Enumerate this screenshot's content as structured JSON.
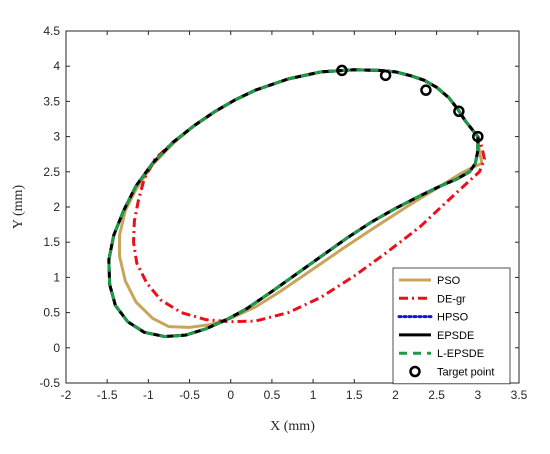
{
  "chart_data": {
    "type": "line",
    "xlabel": "X (mm)",
    "ylabel": "Y (mm)",
    "xlim": [
      -2,
      3.5
    ],
    "ylim": [
      -0.5,
      4.5
    ],
    "xticks": [
      "-2",
      "-1.5",
      "-1",
      "-0.5",
      "0",
      "0.5",
      "1",
      "1.5",
      "2",
      "2.5",
      "3",
      "3.5"
    ],
    "yticks": [
      "-0.5",
      "0",
      "0.5",
      "1",
      "1.5",
      "2",
      "2.5",
      "3",
      "3.5",
      "4",
      "4.5"
    ],
    "grid": false,
    "legend_position": "bottom-right",
    "series": [
      {
        "name": "PSO",
        "color": "#c9a45c",
        "style": "solid",
        "x": [
          3.0,
          2.85,
          2.75,
          2.65,
          2.5,
          2.35,
          2.2,
          2.0,
          1.8,
          1.5,
          1.1,
          0.7,
          0.3,
          0.05,
          -0.2,
          -0.45,
          -0.7,
          -0.95,
          -1.15,
          -1.28,
          -1.35,
          -1.35,
          -1.28,
          -1.15,
          -0.95,
          -0.75,
          -0.5,
          -0.25,
          0.0,
          0.3,
          0.6,
          1.0,
          1.4,
          1.8,
          2.2,
          2.55,
          2.8,
          2.95,
          3.05,
          3.02,
          3.0
        ],
        "y": [
          3.0,
          3.22,
          3.4,
          3.55,
          3.7,
          3.8,
          3.86,
          3.92,
          3.94,
          3.95,
          3.92,
          3.82,
          3.66,
          3.52,
          3.35,
          3.15,
          2.9,
          2.6,
          2.25,
          1.95,
          1.6,
          1.3,
          0.95,
          0.65,
          0.42,
          0.3,
          0.29,
          0.33,
          0.42,
          0.58,
          0.8,
          1.12,
          1.44,
          1.75,
          2.05,
          2.3,
          2.48,
          2.57,
          2.62,
          2.78,
          3.0
        ]
      },
      {
        "name": "DE-gr",
        "color": "#e8101a",
        "style": "dashdot",
        "x": [
          3.0,
          2.85,
          2.75,
          2.65,
          2.5,
          2.35,
          2.2,
          2.0,
          1.8,
          1.5,
          1.1,
          0.7,
          0.3,
          0.05,
          -0.2,
          -0.45,
          -0.7,
          -0.92,
          -1.05,
          -1.12,
          -1.17,
          -1.18,
          -1.14,
          -1.02,
          -0.85,
          -0.6,
          -0.3,
          0.0,
          0.3,
          0.7,
          1.1,
          1.5,
          1.9,
          2.3,
          2.6,
          2.85,
          3.02,
          3.08,
          3.05,
          3.0
        ],
        "y": [
          3.0,
          3.22,
          3.4,
          3.55,
          3.7,
          3.8,
          3.86,
          3.92,
          3.94,
          3.95,
          3.92,
          3.82,
          3.66,
          3.52,
          3.35,
          3.15,
          2.92,
          2.68,
          2.4,
          2.1,
          1.8,
          1.5,
          1.2,
          0.92,
          0.68,
          0.5,
          0.4,
          0.37,
          0.38,
          0.5,
          0.72,
          1.02,
          1.36,
          1.72,
          2.05,
          2.32,
          2.5,
          2.68,
          2.85,
          3.0
        ]
      },
      {
        "name": "HPSO",
        "color": "#1515d6",
        "style": "dotted",
        "x": [
          3.0,
          2.85,
          2.75,
          2.65,
          2.5,
          2.35,
          2.2,
          2.0,
          1.8,
          1.5,
          1.1,
          0.7,
          0.3,
          0.05,
          -0.2,
          -0.45,
          -0.7,
          -0.95,
          -1.15,
          -1.3,
          -1.42,
          -1.48,
          -1.47,
          -1.4,
          -1.25,
          -1.05,
          -0.8,
          -0.55,
          -0.3,
          -0.05,
          0.2,
          0.5,
          0.8,
          1.1,
          1.4,
          1.7,
          2.0,
          2.3,
          2.55,
          2.75,
          2.9,
          2.97,
          3.0,
          3.0
        ],
        "y": [
          3.0,
          3.22,
          3.4,
          3.55,
          3.7,
          3.8,
          3.86,
          3.92,
          3.94,
          3.95,
          3.92,
          3.82,
          3.66,
          3.52,
          3.35,
          3.15,
          2.92,
          2.62,
          2.3,
          1.95,
          1.6,
          1.25,
          0.9,
          0.6,
          0.37,
          0.22,
          0.16,
          0.18,
          0.27,
          0.4,
          0.56,
          0.8,
          1.05,
          1.3,
          1.55,
          1.78,
          1.98,
          2.16,
          2.3,
          2.4,
          2.5,
          2.62,
          2.8,
          3.0
        ]
      },
      {
        "name": "EPSDE",
        "color": "#000000",
        "style": "solid",
        "x": [
          3.0,
          2.85,
          2.75,
          2.65,
          2.5,
          2.35,
          2.2,
          2.0,
          1.8,
          1.5,
          1.1,
          0.7,
          0.3,
          0.05,
          -0.2,
          -0.45,
          -0.7,
          -0.95,
          -1.15,
          -1.3,
          -1.42,
          -1.48,
          -1.47,
          -1.4,
          -1.25,
          -1.05,
          -0.8,
          -0.55,
          -0.3,
          -0.05,
          0.2,
          0.5,
          0.8,
          1.1,
          1.4,
          1.7,
          2.0,
          2.3,
          2.55,
          2.75,
          2.9,
          2.97,
          3.0,
          3.0
        ],
        "y": [
          3.0,
          3.22,
          3.4,
          3.55,
          3.7,
          3.8,
          3.86,
          3.92,
          3.94,
          3.95,
          3.92,
          3.82,
          3.66,
          3.52,
          3.35,
          3.15,
          2.92,
          2.62,
          2.3,
          1.95,
          1.6,
          1.25,
          0.9,
          0.6,
          0.37,
          0.22,
          0.16,
          0.18,
          0.27,
          0.4,
          0.56,
          0.8,
          1.05,
          1.3,
          1.55,
          1.78,
          1.98,
          2.16,
          2.3,
          2.4,
          2.5,
          2.62,
          2.8,
          3.0
        ]
      },
      {
        "name": "L-EPSDE",
        "color": "#1f9a46",
        "style": "dashed",
        "x": [
          3.0,
          2.85,
          2.75,
          2.65,
          2.5,
          2.35,
          2.2,
          2.0,
          1.8,
          1.5,
          1.1,
          0.7,
          0.3,
          0.05,
          -0.2,
          -0.45,
          -0.7,
          -0.95,
          -1.15,
          -1.3,
          -1.42,
          -1.48,
          -1.47,
          -1.4,
          -1.25,
          -1.05,
          -0.8,
          -0.55,
          -0.3,
          -0.05,
          0.2,
          0.5,
          0.8,
          1.1,
          1.4,
          1.7,
          2.0,
          2.3,
          2.55,
          2.75,
          2.9,
          2.97,
          3.0,
          3.0
        ],
        "y": [
          3.0,
          3.22,
          3.4,
          3.55,
          3.7,
          3.8,
          3.86,
          3.92,
          3.94,
          3.95,
          3.92,
          3.82,
          3.66,
          3.52,
          3.35,
          3.15,
          2.92,
          2.62,
          2.3,
          1.95,
          1.6,
          1.25,
          0.9,
          0.6,
          0.37,
          0.22,
          0.16,
          0.18,
          0.27,
          0.4,
          0.56,
          0.8,
          1.05,
          1.3,
          1.55,
          1.78,
          1.98,
          2.16,
          2.3,
          2.4,
          2.5,
          2.62,
          2.8,
          3.0
        ]
      }
    ],
    "target_points": {
      "name": "Target point",
      "color": "#000000",
      "x": [
        1.35,
        1.88,
        2.37,
        2.77,
        3.0
      ],
      "y": [
        3.94,
        3.87,
        3.66,
        3.36,
        3.0
      ]
    }
  }
}
